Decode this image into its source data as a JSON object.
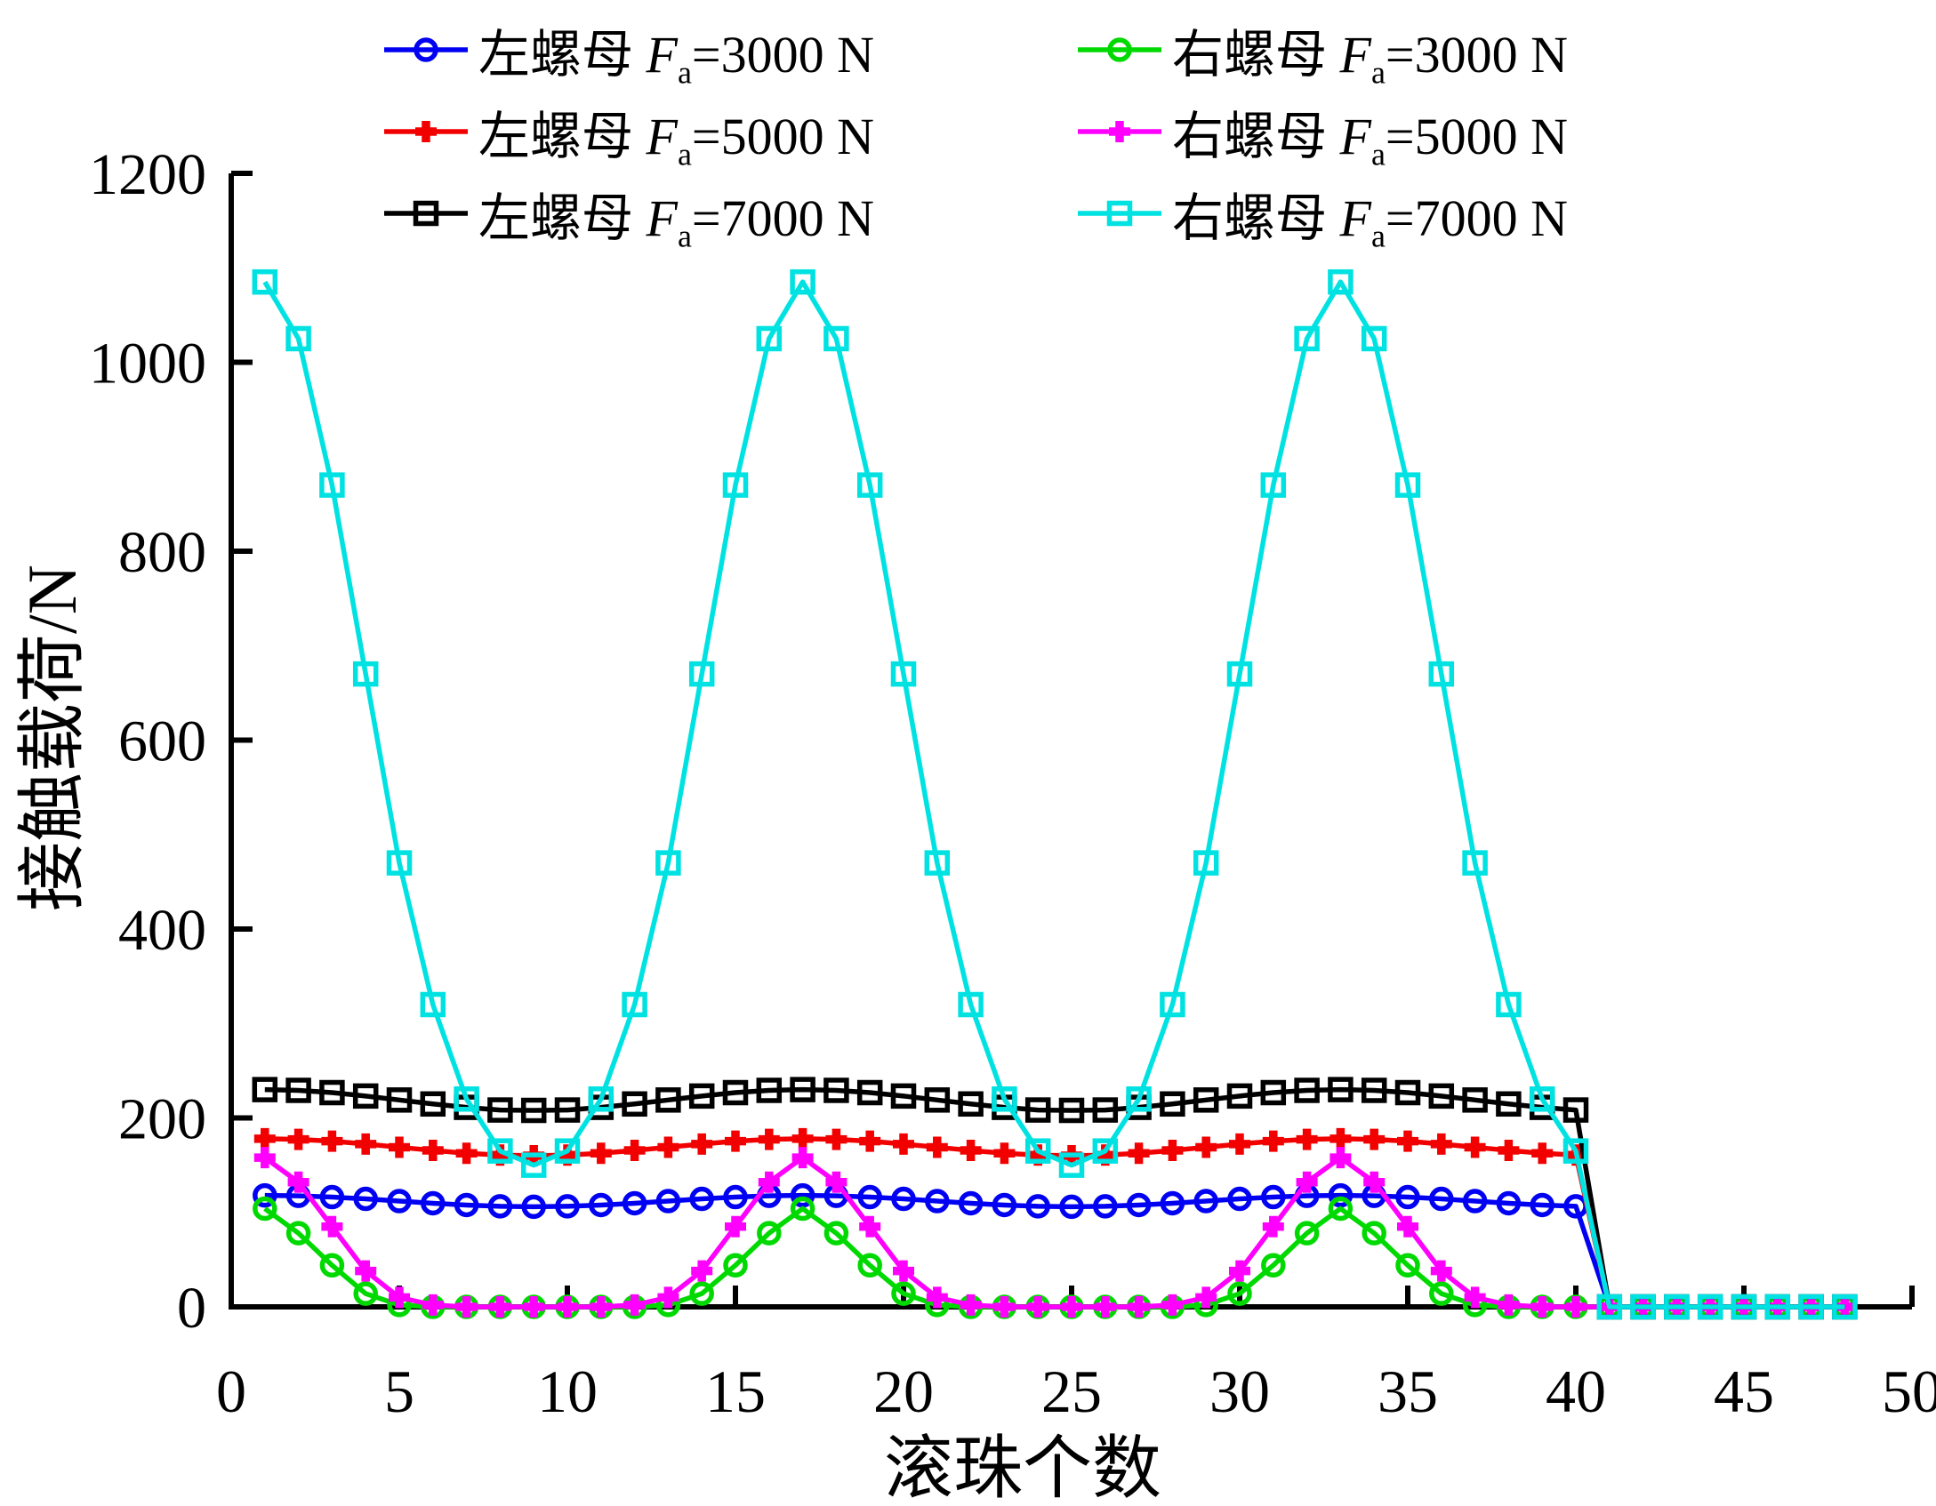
{
  "figure": {
    "background": "#ffffff"
  },
  "axes": {
    "x_label": "滚珠个数",
    "y_label": "接触载荷/N",
    "x_ticks": [
      0,
      5,
      10,
      15,
      20,
      25,
      30,
      35,
      40,
      45,
      50
    ],
    "y_ticks": [
      0,
      200,
      400,
      600,
      800,
      1000,
      1200
    ],
    "axis_color": "#000000"
  },
  "legend": {
    "f_symbol": "F",
    "f_subscript": "a"
  },
  "chart_data": {
    "type": "line",
    "title": "",
    "xlabel": "滚珠个数",
    "ylabel": "接触载荷/N",
    "xlim": [
      0,
      50
    ],
    "ylim": [
      0,
      1200
    ],
    "grid": false,
    "legend_position": "top",
    "x": [
      1,
      2,
      3,
      4,
      5,
      6,
      7,
      8,
      9,
      10,
      11,
      12,
      13,
      14,
      15,
      16,
      17,
      18,
      19,
      20,
      21,
      22,
      23,
      24,
      25,
      26,
      27,
      28,
      29,
      30,
      31,
      32,
      33,
      34,
      35,
      36,
      37,
      38,
      39,
      40,
      41,
      42,
      43,
      44,
      45,
      46,
      47,
      48
    ],
    "series": [
      {
        "name": "左螺母 Fa=3000 N",
        "nut": "左螺母",
        "fa_text": "=3000 N",
        "color": "#0000f2",
        "marker": "circle",
        "values": [
          118,
          117.5,
          116.2,
          114.3,
          112,
          109.7,
          107.8,
          106.5,
          106,
          106.5,
          107.8,
          109.7,
          112,
          114.3,
          116.2,
          117.5,
          118,
          117.5,
          116.2,
          114.3,
          112,
          109.7,
          107.8,
          106.5,
          106,
          106.5,
          107.8,
          109.7,
          112,
          114.3,
          116.2,
          117.5,
          118,
          117.5,
          116.2,
          114.3,
          112,
          109.7,
          107.8,
          106.5,
          0,
          0,
          0,
          0,
          0,
          0,
          0,
          0
        ]
      },
      {
        "name": "右螺母 Fa=3000 N",
        "nut": "右螺母",
        "fa_text": "=3000 N",
        "color": "#00d900",
        "marker": "circle",
        "values": [
          104,
          78,
          44,
          14,
          2,
          0,
          0,
          0,
          0,
          0,
          0,
          0,
          2,
          14,
          44,
          78,
          104,
          78,
          44,
          14,
          2,
          0,
          0,
          0,
          0,
          0,
          0,
          0,
          2,
          14,
          44,
          78,
          104,
          78,
          44,
          14,
          2,
          0,
          0,
          0,
          0,
          0,
          0,
          0,
          0,
          0,
          0,
          0
        ]
      },
      {
        "name": "左螺母 Fa=5000 N",
        "nut": "左螺母",
        "fa_text": "=5000 N",
        "color": "#f20000",
        "marker": "plus",
        "values": [
          178,
          177.3,
          175.4,
          172.4,
          169,
          165.6,
          162.6,
          160.7,
          160,
          160.7,
          162.6,
          165.6,
          169,
          172.4,
          175.4,
          177.3,
          178,
          177.3,
          175.4,
          172.4,
          169,
          165.6,
          162.6,
          160.7,
          160,
          160.7,
          162.6,
          165.6,
          169,
          172.4,
          175.4,
          177.3,
          178,
          177.3,
          175.4,
          172.4,
          169,
          165.6,
          162.6,
          160.7,
          0,
          0,
          0,
          0,
          0,
          0,
          0,
          0
        ]
      },
      {
        "name": "右螺母 Fa=5000 N",
        "nut": "右螺母",
        "fa_text": "=5000 N",
        "color": "#ff00ff",
        "marker": "plus",
        "values": [
          158,
          132,
          85,
          38,
          10,
          2,
          0,
          0,
          0,
          0,
          0,
          2,
          10,
          38,
          85,
          132,
          158,
          132,
          85,
          38,
          10,
          2,
          0,
          0,
          0,
          0,
          0,
          2,
          10,
          38,
          85,
          132,
          158,
          132,
          85,
          38,
          10,
          2,
          0,
          0,
          0,
          0,
          0,
          0,
          0,
          0,
          0,
          0
        ]
      },
      {
        "name": "左螺母 Fa=7000 N",
        "nut": "左螺母",
        "fa_text": "=7000 N",
        "color": "#000000",
        "marker": "square",
        "values": [
          230,
          229.2,
          226.8,
          223.2,
          219,
          214.8,
          211.2,
          208.4,
          208,
          208.4,
          211.2,
          214.8,
          219,
          223.2,
          226.8,
          229.2,
          230,
          229.2,
          226.8,
          223.2,
          219,
          214.8,
          211.2,
          208.4,
          208,
          208.4,
          211.2,
          214.8,
          219,
          223.2,
          226.8,
          229.2,
          230,
          229.2,
          226.8,
          223.2,
          219,
          214.8,
          211.2,
          208.4,
          0,
          0,
          0,
          0,
          0,
          0,
          0,
          0
        ]
      },
      {
        "name": "右螺母 Fa=7000 N",
        "nut": "右螺母",
        "fa_text": "=7000 N",
        "color": "#00e2e2",
        "marker": "square",
        "values": [
          1085,
          1025,
          870,
          670,
          470,
          320,
          220,
          165,
          150,
          165,
          220,
          320,
          470,
          670,
          870,
          1025,
          1085,
          1025,
          870,
          670,
          470,
          320,
          220,
          165,
          150,
          165,
          220,
          320,
          470,
          670,
          870,
          1025,
          1085,
          1025,
          870,
          670,
          470,
          320,
          220,
          165,
          0,
          0,
          0,
          0,
          0,
          0,
          0,
          0
        ]
      }
    ]
  }
}
